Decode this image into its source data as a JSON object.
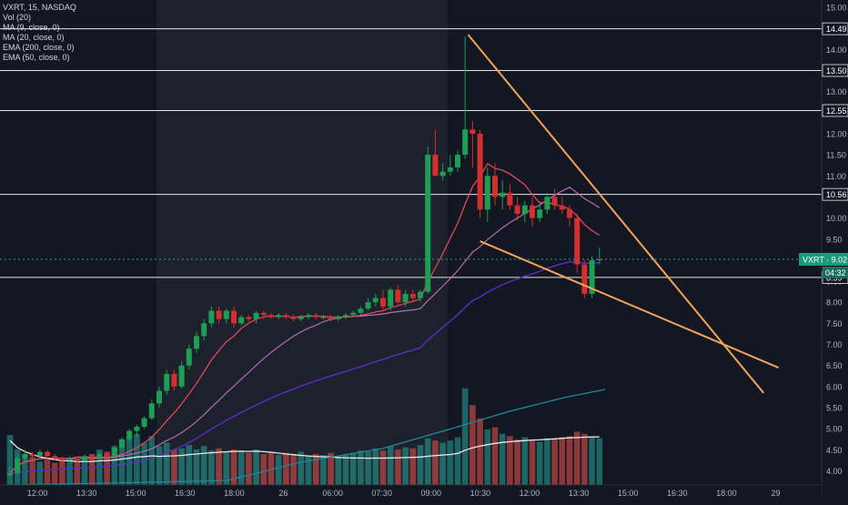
{
  "legend": {
    "symbol": "VXRT, 15, NASDAQ",
    "vol": "Vol (20)",
    "ma9": "MA (9, close, 0)",
    "ma20": "MA (20, close, 0)",
    "ema200": "EMA (200, close, 0)",
    "ema50": "EMA (50, close, 0)"
  },
  "colors": {
    "background": "#131722",
    "session_shade": "#1d212c",
    "up": "#26a69a",
    "down": "#ef5350",
    "up_body": "#1f9d55",
    "down_body": "#d32f2f",
    "ma9": "#f0485f",
    "ma20": "#b06fb8",
    "ema200": "#5b2cc8",
    "ema50": "#1e8a9a",
    "vol_ma": "#e8e8e8",
    "trendline": "#f5a35a",
    "price_line": "#26a69a"
  },
  "chart_data": {
    "type": "candlestick",
    "title": "VXRT, 15, NASDAQ",
    "ylim": [
      3.75,
      15.15
    ],
    "y_ticks": [
      "15.00",
      "14.50",
      "14.00",
      "13.50",
      "13.00",
      "12.50",
      "12.00",
      "11.50",
      "11.00",
      "10.50",
      "10.00",
      "9.50",
      "9.00",
      "8.50",
      "8.00",
      "7.50",
      "7.00",
      "6.50",
      "6.00",
      "5.50",
      "5.00",
      "4.50",
      "4.00"
    ],
    "x_ticks": [
      "12:00",
      "13:30",
      "15:00",
      "16:30",
      "18:00",
      "26",
      "06:00",
      "07:30",
      "09:00",
      "10:30",
      "12:00",
      "13:30",
      "15:00",
      "16:30",
      "18:00",
      "29"
    ],
    "candles": [
      [
        3.9,
        4.1,
        3.85,
        3.95
      ],
      [
        3.95,
        4.4,
        3.9,
        4.3
      ],
      [
        4.3,
        4.5,
        4.2,
        4.4
      ],
      [
        4.4,
        4.45,
        4.3,
        4.35
      ],
      [
        4.35,
        4.5,
        4.3,
        4.45
      ],
      [
        4.45,
        4.5,
        4.3,
        4.35
      ],
      [
        4.35,
        4.4,
        4.25,
        4.3
      ],
      [
        4.3,
        4.35,
        4.2,
        4.25
      ],
      [
        4.25,
        4.35,
        4.2,
        4.3
      ],
      [
        4.3,
        4.35,
        4.2,
        4.25
      ],
      [
        4.25,
        4.4,
        4.2,
        4.35
      ],
      [
        4.35,
        4.4,
        4.25,
        4.3
      ],
      [
        4.3,
        4.45,
        4.25,
        4.4
      ],
      [
        4.4,
        4.45,
        4.3,
        4.35
      ],
      [
        4.35,
        4.6,
        4.3,
        4.55
      ],
      [
        4.55,
        4.8,
        4.5,
        4.75
      ],
      [
        4.75,
        5.0,
        4.7,
        4.95
      ],
      [
        4.95,
        5.1,
        4.8,
        5.05
      ],
      [
        5.05,
        5.3,
        5.0,
        5.25
      ],
      [
        5.25,
        5.7,
        5.2,
        5.6
      ],
      [
        5.6,
        6.0,
        5.5,
        5.9
      ],
      [
        5.9,
        6.4,
        5.8,
        6.3
      ],
      [
        6.3,
        6.4,
        5.9,
        6.0
      ],
      [
        6.0,
        6.6,
        5.95,
        6.5
      ],
      [
        6.5,
        7.0,
        6.4,
        6.9
      ],
      [
        6.9,
        7.3,
        6.8,
        7.2
      ],
      [
        7.2,
        7.6,
        7.1,
        7.5
      ],
      [
        7.5,
        7.9,
        7.4,
        7.8
      ],
      [
        7.8,
        7.9,
        7.5,
        7.6
      ],
      [
        7.6,
        7.85,
        7.5,
        7.8
      ],
      [
        7.8,
        7.9,
        7.4,
        7.5
      ],
      [
        7.5,
        7.7,
        7.45,
        7.65
      ],
      [
        7.65,
        7.7,
        7.5,
        7.6
      ],
      [
        7.6,
        7.8,
        7.5,
        7.75
      ],
      [
        7.75,
        7.8,
        7.6,
        7.7
      ],
      [
        7.7,
        7.75,
        7.6,
        7.65
      ],
      [
        7.65,
        7.75,
        7.6,
        7.7
      ],
      [
        7.7,
        7.75,
        7.6,
        7.65
      ],
      [
        7.65,
        7.7,
        7.55,
        7.6
      ],
      [
        7.6,
        7.7,
        7.55,
        7.65
      ],
      [
        7.65,
        7.75,
        7.6,
        7.7
      ],
      [
        7.7,
        7.75,
        7.6,
        7.65
      ],
      [
        7.65,
        7.7,
        7.6,
        7.65
      ],
      [
        7.65,
        7.7,
        7.55,
        7.6
      ],
      [
        7.6,
        7.7,
        7.55,
        7.65
      ],
      [
        7.65,
        7.75,
        7.6,
        7.7
      ],
      [
        7.7,
        7.8,
        7.65,
        7.75
      ],
      [
        7.75,
        7.9,
        7.7,
        7.85
      ],
      [
        7.85,
        8.1,
        7.8,
        8.0
      ],
      [
        8.0,
        8.2,
        7.9,
        8.1
      ],
      [
        8.1,
        8.3,
        7.8,
        7.9
      ],
      [
        7.9,
        8.35,
        7.8,
        8.3
      ],
      [
        8.3,
        8.4,
        7.9,
        8.0
      ],
      [
        8.0,
        8.3,
        7.9,
        8.2
      ],
      [
        8.2,
        8.3,
        8.0,
        8.1
      ],
      [
        8.1,
        8.3,
        8.0,
        8.25
      ],
      [
        8.25,
        11.7,
        8.2,
        11.5
      ],
      [
        11.5,
        12.1,
        11.0,
        11.0
      ],
      [
        11.0,
        11.3,
        10.9,
        11.1
      ],
      [
        11.1,
        11.5,
        11.0,
        11.2
      ],
      [
        11.2,
        11.6,
        11.1,
        11.5
      ],
      [
        11.5,
        14.3,
        11.4,
        12.1
      ],
      [
        12.1,
        12.3,
        11.2,
        12.0
      ],
      [
        12.0,
        12.1,
        10.0,
        10.2
      ],
      [
        10.2,
        11.2,
        9.9,
        11.0
      ],
      [
        11.0,
        11.3,
        10.3,
        10.5
      ],
      [
        10.5,
        10.9,
        10.2,
        10.6
      ],
      [
        10.6,
        10.8,
        10.2,
        10.3
      ],
      [
        10.3,
        10.5,
        9.95,
        10.1
      ],
      [
        10.1,
        10.4,
        9.9,
        10.3
      ],
      [
        10.3,
        10.5,
        9.8,
        10.0
      ],
      [
        10.0,
        10.4,
        9.9,
        10.2
      ],
      [
        10.2,
        10.6,
        10.1,
        10.5
      ],
      [
        10.5,
        10.7,
        10.2,
        10.3
      ],
      [
        10.3,
        10.5,
        10.1,
        10.2
      ],
      [
        10.2,
        10.3,
        9.8,
        10.0
      ],
      [
        10.0,
        10.1,
        8.7,
        8.9
      ],
      [
        8.9,
        9.0,
        8.1,
        8.2
      ],
      [
        8.2,
        9.1,
        8.1,
        9.0
      ],
      [
        9.0,
        9.3,
        8.9,
        9.02
      ]
    ],
    "volume": [
      4.5,
      3.2,
      2.8,
      2.5,
      2.1,
      2.3,
      2.0,
      2.2,
      2.4,
      2.1,
      2.5,
      2.8,
      3.2,
      3.0,
      3.5,
      4.1,
      4.3,
      4.6,
      3.8,
      4.4,
      3.5,
      3.8,
      3.2,
      3.3,
      3.6,
      3.2,
      3.5,
      3.1,
      3.3,
      3.0,
      3.2,
      3.1,
      2.9,
      3.2,
      2.8,
      3.0,
      2.7,
      2.9,
      2.8,
      3.0,
      2.6,
      2.8,
      2.7,
      2.9,
      2.6,
      2.8,
      2.9,
      3.1,
      3.0,
      3.3,
      3.1,
      3.5,
      3.2,
      3.4,
      3.3,
      3.6,
      4.2,
      4.0,
      3.8,
      4.0,
      4.3,
      8.7,
      7.2,
      6.0,
      5.0,
      5.2,
      4.6,
      4.4,
      4.1,
      4.3,
      4.0,
      3.9,
      4.2,
      4.1,
      4.3,
      4.4,
      4.8,
      4.6,
      4.3,
      4.2
    ],
    "trendlines": [
      {
        "from": {
          "i": 61.4,
          "v": 14.35
        },
        "to": {
          "i": 101,
          "v": 5.85
        }
      },
      {
        "from": {
          "i": 63,
          "v": 9.45
        },
        "to": {
          "i": 103,
          "v": 6.45
        }
      }
    ],
    "levels": [
      "14.49",
      "13.50",
      "12.55",
      "10.56",
      "8.59"
    ],
    "last_price": {
      "symbol": "VXRT",
      "value": 9.02,
      "countdown": "04:32"
    }
  }
}
